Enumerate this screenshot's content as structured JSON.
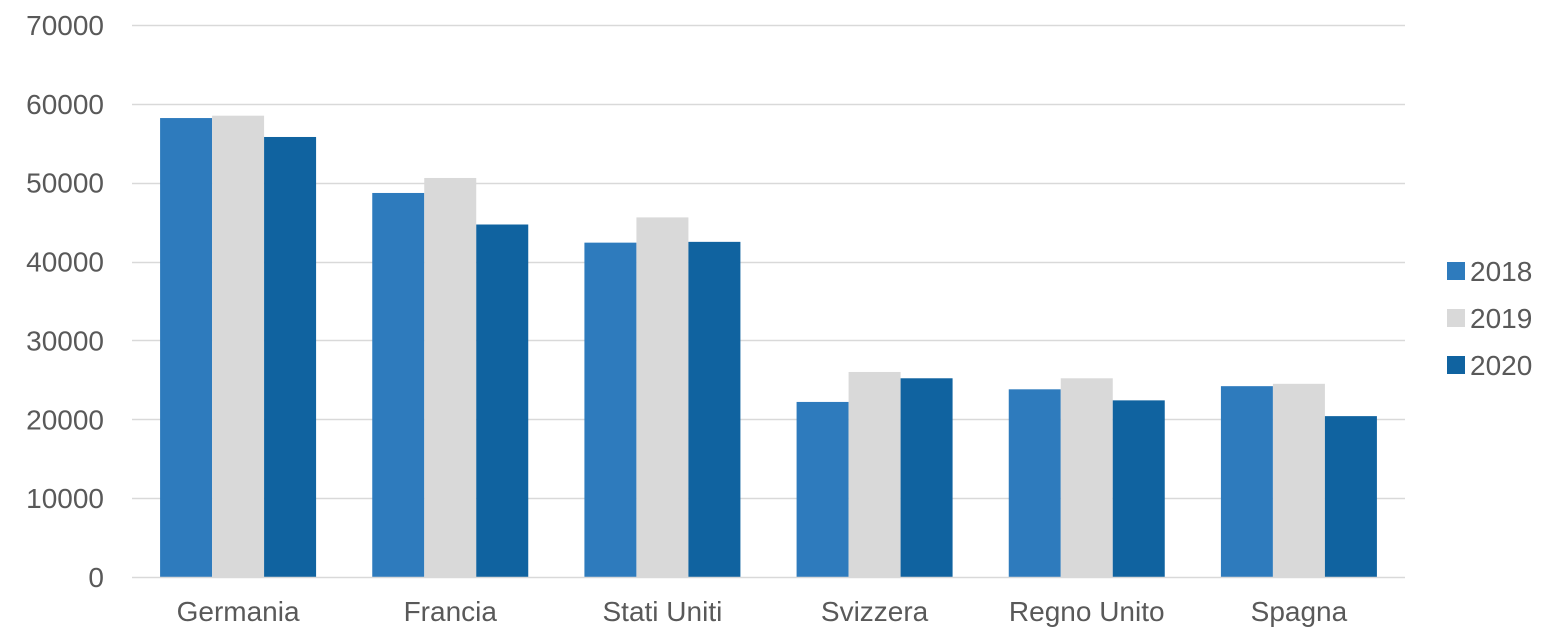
{
  "chart_data": {
    "type": "bar",
    "categories": [
      "Germania",
      "Francia",
      "Stati Uniti",
      "Svizzera",
      "Regno Unito",
      "Spagna"
    ],
    "series": [
      {
        "name": "2018",
        "color": "#2e7bbd",
        "values": [
          58200,
          48700,
          42400,
          22200,
          23800,
          24200
        ]
      },
      {
        "name": "2019",
        "color": "#d9d9d9",
        "values": [
          58500,
          50600,
          45600,
          26000,
          25200,
          24500
        ]
      },
      {
        "name": "2020",
        "color": "#1063a0",
        "values": [
          55800,
          44700,
          42500,
          25200,
          22400,
          20400
        ]
      }
    ],
    "ylim": [
      0,
      70000
    ],
    "yticks": [
      0,
      10000,
      20000,
      30000,
      40000,
      50000,
      60000,
      70000
    ],
    "grid": true,
    "legend_position": "right",
    "gridline_color": "#d9d9d9",
    "axis_color": "#d9d9d9",
    "text_color": "#595959"
  }
}
